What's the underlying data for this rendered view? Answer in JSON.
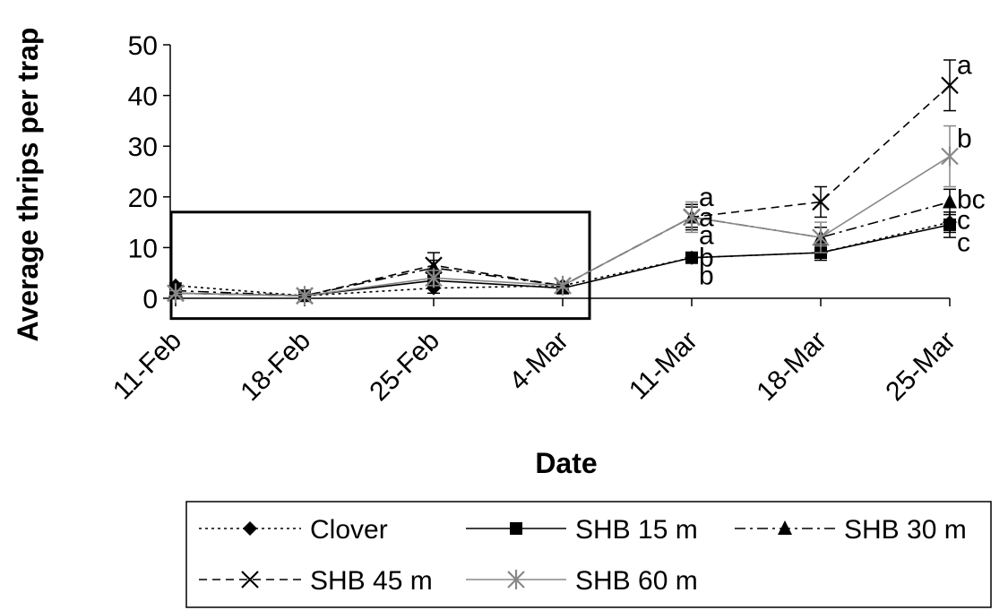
{
  "chart_data": {
    "type": "line",
    "title": "",
    "xlabel": "Date",
    "ylabel": "Average thrips per trap",
    "categories": [
      "11-Feb",
      "18-Feb",
      "25-Feb",
      "4-Mar",
      "11-Mar",
      "18-Mar",
      "25-Mar"
    ],
    "ylim": [
      0,
      50
    ],
    "yticks": [
      0,
      10,
      20,
      30,
      40,
      50
    ],
    "grid": false,
    "legend_position": "bottom",
    "highlight_box": {
      "from_category": "11-Feb",
      "to_category": "4-Mar",
      "y_from": -4,
      "y_to": 17
    },
    "series": [
      {
        "name": "Clover",
        "marker": "diamond",
        "line": "dotted",
        "color": "#000000",
        "values": [
          2.5,
          0.5,
          2,
          2.5,
          8,
          9,
          15
        ],
        "error": [
          0.5,
          0.5,
          1,
          0.5,
          1,
          1,
          2
        ]
      },
      {
        "name": "SHB 15 m",
        "marker": "square",
        "line": "solid",
        "color": "#000000",
        "values": [
          1,
          0.5,
          3.5,
          2,
          8,
          9,
          14.5
        ],
        "error": [
          0.5,
          0.5,
          1,
          0.5,
          1,
          1.5,
          2.5
        ]
      },
      {
        "name": "SHB 30 m",
        "marker": "triangle",
        "line": "dashdot",
        "color": "#000000",
        "values": [
          1.5,
          0.5,
          6,
          2.5,
          16,
          12,
          19
        ],
        "error": [
          0.5,
          0.5,
          1.5,
          0.5,
          2,
          2,
          2.5
        ]
      },
      {
        "name": "SHB 45 m",
        "marker": "x",
        "line": "dashed",
        "color": "#000000",
        "values": [
          1,
          0.5,
          6.5,
          2.5,
          16,
          19,
          42
        ],
        "error": [
          0.5,
          0.5,
          2.5,
          0.5,
          2.5,
          3,
          5
        ]
      },
      {
        "name": "SHB 60 m",
        "marker": "star",
        "line": "solid",
        "color": "#888888",
        "values": [
          1,
          0.5,
          4,
          2.5,
          16,
          12,
          28
        ],
        "error": [
          0.5,
          0.5,
          1.5,
          0.5,
          3,
          3,
          6
        ]
      }
    ],
    "annotations": [
      {
        "category": "11-Mar",
        "y": 20,
        "text": "a"
      },
      {
        "category": "11-Mar",
        "y": 16,
        "text": "a"
      },
      {
        "category": "11-Mar",
        "y": 12.5,
        "text": "a"
      },
      {
        "category": "11-Mar",
        "y": 8,
        "text": "b"
      },
      {
        "category": "11-Mar",
        "y": 4.5,
        "text": "b"
      },
      {
        "category": "25-Mar",
        "y": 46,
        "text": "a"
      },
      {
        "category": "25-Mar",
        "y": 31.5,
        "text": "b"
      },
      {
        "category": "25-Mar",
        "y": 19.5,
        "text": "bc"
      },
      {
        "category": "25-Mar",
        "y": 15.5,
        "text": "c"
      },
      {
        "category": "25-Mar",
        "y": 11,
        "text": "c"
      }
    ]
  }
}
